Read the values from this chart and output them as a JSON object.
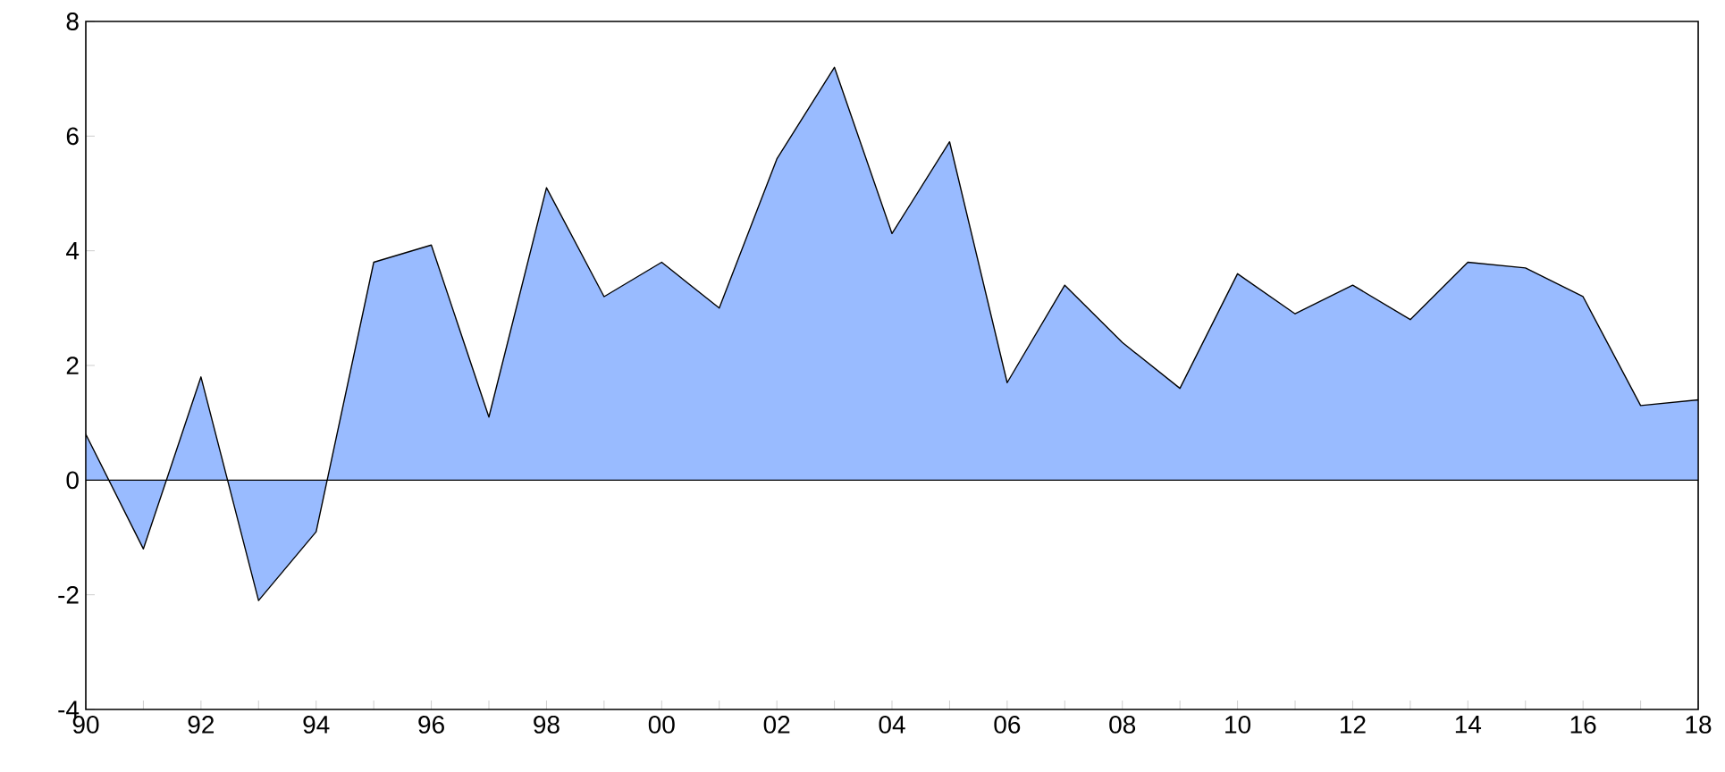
{
  "chart_data": {
    "type": "area",
    "x": [
      1990,
      1991,
      1992,
      1993,
      1994,
      1995,
      1996,
      1997,
      1998,
      1999,
      2000,
      2001,
      2002,
      2003,
      2004,
      2005,
      2006,
      2007,
      2008,
      2009,
      2010,
      2011,
      2012,
      2013,
      2014,
      2015,
      2016,
      2017,
      2018
    ],
    "series": [
      {
        "color": "#99bbff",
        "values": [
          0.8,
          -1.2,
          1.8,
          -2.1,
          -0.9,
          3.8,
          4.1,
          1.1,
          5.1,
          3.2,
          3.8,
          3.0,
          5.6,
          7.2,
          4.3,
          5.9,
          1.7,
          3.4,
          2.4,
          1.6,
          3.6,
          2.9,
          3.4,
          2.8,
          3.8,
          3.7,
          3.2,
          1.3,
          1.4
        ]
      }
    ],
    "xlim": [
      1990,
      2018
    ],
    "xticks": [
      {
        "value": 1990,
        "label": "90"
      },
      {
        "value": 1991,
        "label": null
      },
      {
        "value": 1992,
        "label": "92"
      },
      {
        "value": 1993,
        "label": null
      },
      {
        "value": 1994,
        "label": "94"
      },
      {
        "value": 1995,
        "label": null
      },
      {
        "value": 1996,
        "label": "96"
      },
      {
        "value": 1997,
        "label": null
      },
      {
        "value": 1998,
        "label": "98"
      },
      {
        "value": 1999,
        "label": null
      },
      {
        "value": 2000,
        "label": "00"
      },
      {
        "value": 2001,
        "label": null
      },
      {
        "value": 2002,
        "label": "02"
      },
      {
        "value": 2003,
        "label": null
      },
      {
        "value": 2004,
        "label": "04"
      },
      {
        "value": 2005,
        "label": null
      },
      {
        "value": 2006,
        "label": "06"
      },
      {
        "value": 2007,
        "label": null
      },
      {
        "value": 2008,
        "label": "08"
      },
      {
        "value": 2009,
        "label": null
      },
      {
        "value": 2010,
        "label": "10"
      },
      {
        "value": 2011,
        "label": null
      },
      {
        "value": 2012,
        "label": "12"
      },
      {
        "value": 2013,
        "label": null
      },
      {
        "value": 2014,
        "label": "14"
      },
      {
        "value": 2015,
        "label": null
      },
      {
        "value": 2016,
        "label": "16"
      },
      {
        "value": 2017,
        "label": null
      },
      {
        "value": 2018,
        "label": "18"
      }
    ],
    "ylim": [
      -4,
      8
    ],
    "yticks": [
      -4,
      -2,
      0,
      2,
      4,
      6,
      8
    ],
    "grid": false,
    "marker": "none",
    "line_style": "solid"
  }
}
